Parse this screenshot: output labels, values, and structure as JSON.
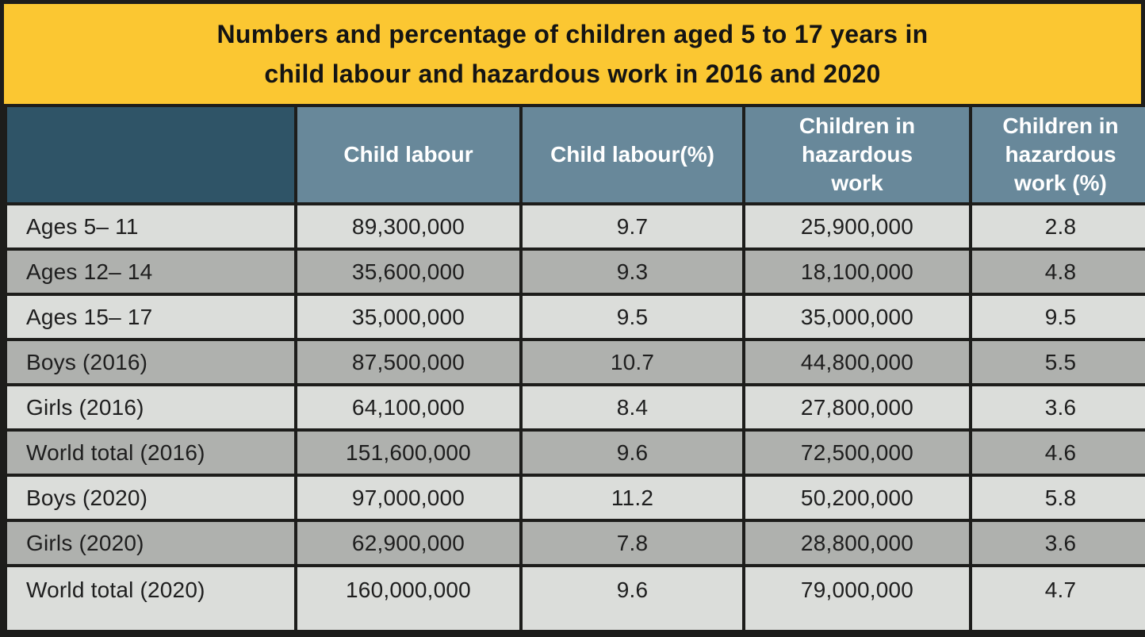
{
  "title": {
    "line1": "Numbers and percentage of children aged 5 to 17 years in",
    "line2": "child labour and hazardous work in 2016 and 2020"
  },
  "chart_data": {
    "type": "table",
    "title": "Numbers and percentage of children aged 5 to 17 years in child labour and hazardous work in 2016 and 2020",
    "columns": [
      "",
      "Child labour",
      "Child labour(%)",
      "Children in hazardous work",
      "Children in hazardous work (%)"
    ],
    "rows": [
      [
        "Ages 5– 11",
        "89,300,000",
        "9.7",
        "25,900,000",
        "2.8"
      ],
      [
        "Ages 12– 14",
        "35,600,000",
        "9.3",
        "18,100,000",
        "4.8"
      ],
      [
        "Ages 15– 17",
        "35,000,000",
        "9.5",
        "35,000,000",
        "9.5"
      ],
      [
        "Boys (2016)",
        "87,500,000",
        "10.7",
        "44,800,000",
        "5.5"
      ],
      [
        "Girls (2016)",
        "64,100,000",
        "8.4",
        "27,800,000",
        "3.6"
      ],
      [
        "World total (2016)",
        "151,600,000",
        "9.6",
        "72,500,000",
        "4.6"
      ],
      [
        "Boys (2020)",
        "97,000,000",
        "11.2",
        "50,200,000",
        "5.8"
      ],
      [
        "Girls (2020)",
        "62,900,000",
        "7.8",
        "28,800,000",
        "3.6"
      ],
      [
        "World total (2020)",
        "160,000,000",
        "9.6",
        "79,000,000",
        "4.7"
      ]
    ]
  },
  "colors": {
    "title_background": "#FBC732",
    "title_text": "#141414",
    "corner_background": "#2F5467",
    "header_background": "#68889A",
    "header_text": "#FFFFFF",
    "row_light": "#DBDDDA",
    "row_dark": "#AFB1AE",
    "body_text": "#1E1E1E",
    "border": "#1D1D1B"
  }
}
